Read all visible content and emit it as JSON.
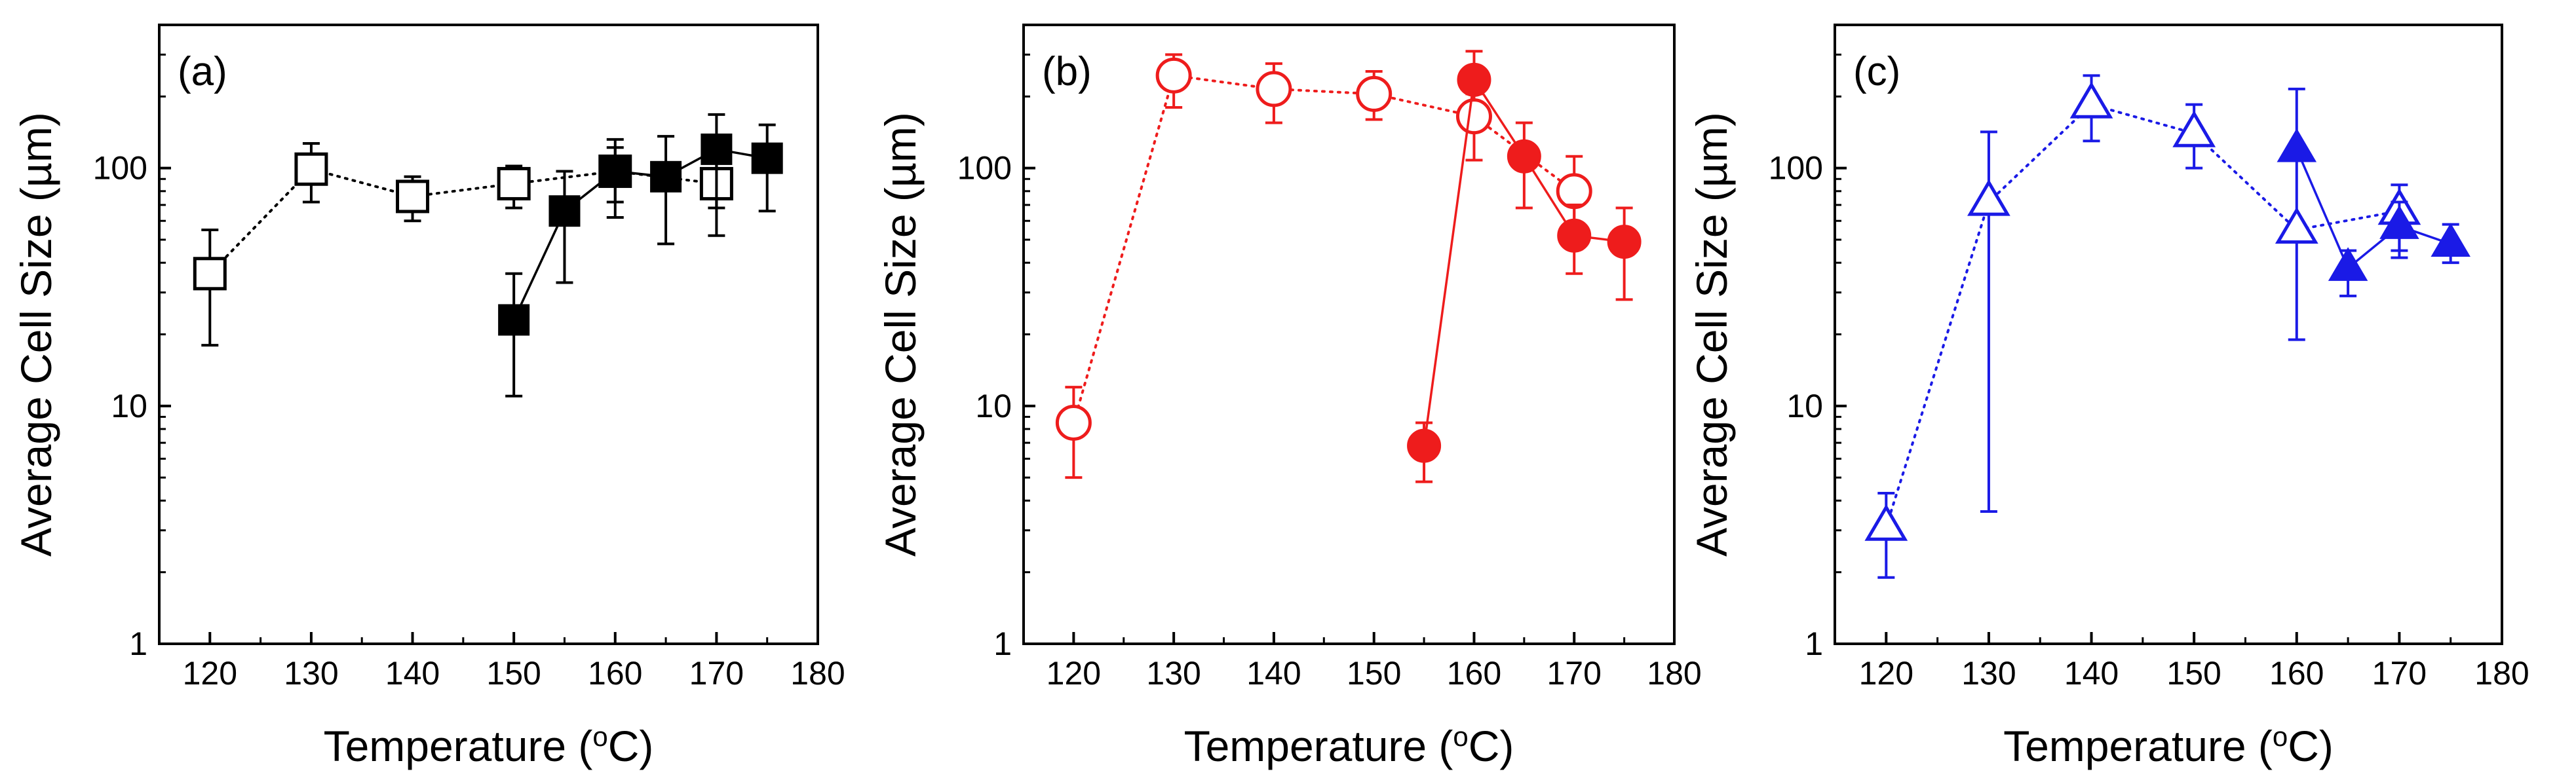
{
  "chart_data": [
    {
      "type": "scatter",
      "panel_label": "(a)",
      "xlabel": "Temperature (",
      "xlabel_sup": "o",
      "xlabel_tail": "C)",
      "ylabel": "Average Cell Size (µm)",
      "xlim": [
        115,
        180
      ],
      "ylim": [
        1,
        400
      ],
      "yscale": "log",
      "xticks": [
        120,
        130,
        140,
        150,
        160,
        170,
        180
      ],
      "yticks": [
        1,
        10,
        100
      ],
      "ytick_labels": [
        "1",
        "10",
        "100"
      ],
      "series": [
        {
          "name": "open",
          "color": "#000000",
          "marker": "square",
          "filled": false,
          "line": "dotted",
          "x": [
            120,
            130,
            140,
            150,
            160,
            170
          ],
          "y": [
            36,
            99,
            76,
            86,
            97,
            86
          ],
          "err_low": [
            18,
            72,
            60,
            68,
            62,
            52
          ],
          "err_high": [
            55,
            127,
            92,
            102,
            132,
            132
          ]
        },
        {
          "name": "filled",
          "color": "#000000",
          "marker": "square",
          "filled": true,
          "line": "solid",
          "x": [
            150,
            155,
            160,
            165,
            170,
            175
          ],
          "y": [
            23,
            66,
            97,
            92,
            120,
            110
          ],
          "err_low": [
            11,
            33,
            72,
            48,
            68,
            66
          ],
          "err_high": [
            36,
            97,
            122,
            136,
            168,
            152
          ]
        }
      ]
    },
    {
      "type": "scatter",
      "panel_label": "(b)",
      "xlabel": "Temperature (",
      "xlabel_sup": "o",
      "xlabel_tail": "C)",
      "ylabel": "Average Cell Size (µm)",
      "xlim": [
        115,
        180
      ],
      "ylim": [
        1,
        400
      ],
      "yscale": "log",
      "xticks": [
        120,
        130,
        140,
        150,
        160,
        170,
        180
      ],
      "yticks": [
        1,
        10,
        100
      ],
      "ytick_labels": [
        "1",
        "10",
        "100"
      ],
      "series": [
        {
          "name": "open",
          "color": "#ee1c1c",
          "marker": "circle",
          "filled": false,
          "line": "dotted",
          "x": [
            120,
            130,
            140,
            150,
            160,
            170
          ],
          "y": [
            8.5,
            245,
            215,
            205,
            165,
            80
          ],
          "err_low": [
            5,
            180,
            155,
            160,
            108,
            58
          ],
          "err_high": [
            12,
            300,
            275,
            255,
            222,
            112
          ]
        },
        {
          "name": "filled",
          "color": "#ee1c1c",
          "marker": "circle",
          "filled": true,
          "line": "solid",
          "x": [
            155,
            160,
            165,
            170,
            175
          ],
          "y": [
            6.8,
            235,
            112,
            52,
            49
          ],
          "err_low": [
            4.8,
            205,
            68,
            36,
            28
          ],
          "err_high": [
            8.5,
            310,
            155,
            70,
            68
          ]
        }
      ]
    },
    {
      "type": "scatter",
      "panel_label": "(c)",
      "xlabel": "Temperature (",
      "xlabel_sup": "o",
      "xlabel_tail": "C)",
      "ylabel": "Average Cell Size (µm)",
      "xlim": [
        115,
        180
      ],
      "ylim": [
        1,
        400
      ],
      "yscale": "log",
      "xticks": [
        120,
        130,
        140,
        150,
        160,
        170,
        180
      ],
      "yticks": [
        1,
        10,
        100
      ],
      "ytick_labels": [
        "1",
        "10",
        "100"
      ],
      "series": [
        {
          "name": "open",
          "color": "#1a1ae6",
          "marker": "triangle",
          "filled": false,
          "line": "dotted",
          "x": [
            120,
            130,
            140,
            150,
            160,
            170
          ],
          "y": [
            3.1,
            72,
            185,
            140,
            55,
            66
          ],
          "err_low": [
            1.9,
            3.6,
            130,
            100,
            19,
            45
          ],
          "err_high": [
            4.3,
            142,
            245,
            185,
            215,
            85
          ]
        },
        {
          "name": "filled",
          "color": "#1a1ae6",
          "marker": "triangle",
          "filled": true,
          "line": "solid",
          "x": [
            160,
            165,
            170,
            175
          ],
          "y": [
            120,
            38,
            57,
            48
          ],
          "err_low": [
            120,
            29,
            42,
            40
          ],
          "err_high": [
            120,
            45,
            72,
            58
          ]
        }
      ]
    }
  ]
}
